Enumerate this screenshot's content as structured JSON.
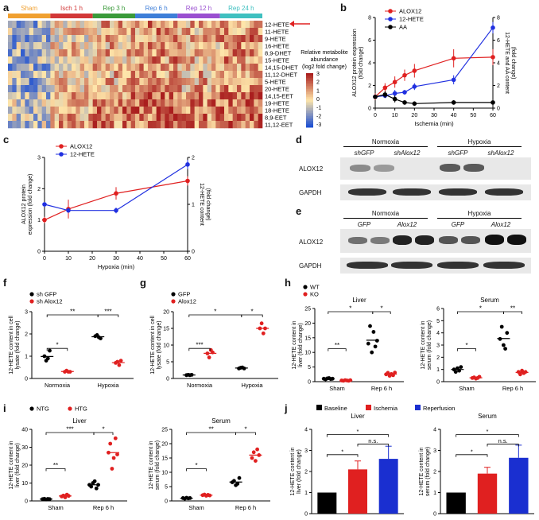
{
  "figure": {
    "panel_letters": [
      "a",
      "b",
      "c",
      "d",
      "e",
      "f",
      "g",
      "h",
      "i",
      "j"
    ],
    "panel_a": {
      "groups": [
        {
          "label": "Sham",
          "color": "#f0a030"
        },
        {
          "label": "Isch 1 h",
          "color": "#d23838"
        },
        {
          "label": "Rep 3 h",
          "color": "#3a9a3a"
        },
        {
          "label": "Rep 6 h",
          "color": "#3d7ed8"
        },
        {
          "label": "Rep 12 h",
          "color": "#9a4fd0"
        },
        {
          "label": "Rep 24 h",
          "color": "#3fc0c0"
        }
      ],
      "rows": [
        "12-HETE",
        "11-HETE",
        "9-HETE",
        "16-HETE",
        "8,9-DHET",
        "15-HETE",
        "14,15-DHET",
        "11,12-DHET",
        "5-HETE",
        "20-HETE",
        "14,15-EET",
        "19-HETE",
        "18-HETE",
        "8,9-EET",
        "11,12-EET"
      ],
      "colorbar_title": [
        "Relative metabolite",
        "abundance",
        "(log2 fold change)"
      ],
      "colorbar_ticks": [
        "3",
        "2",
        "1",
        "0",
        "-1",
        "-2",
        "-3"
      ]
    },
    "panel_b": {
      "ylabel_left": [
        "ALOX12 protein expression",
        "(fold change)"
      ],
      "ylabel_right": [
        "12-HETE and AA content",
        "(fold change)"
      ],
      "xlabel": "Ischemia (min)",
      "legend": [
        "ALOX12",
        "12-HETE",
        "AA"
      ]
    },
    "panel_c": {
      "ylabel_left": [
        "ALOX12 protein",
        "expression (fold change)"
      ],
      "ylabel_right": [
        "12-HETE content",
        "(fold change)"
      ],
      "xlabel": "Hypoxia (min)",
      "legend": [
        "ALOX12",
        "12-HETE"
      ]
    },
    "panel_d": {
      "conditions": [
        "Normoxia",
        "Hypoxia"
      ],
      "lanes": [
        "shGFP",
        "shAlox12",
        "shGFP",
        "shAlox12"
      ],
      "rows": [
        "ALOX12",
        "GAPDH"
      ]
    },
    "panel_e": {
      "conditions": [
        "Normoxia",
        "Hypoxia"
      ],
      "lanes": [
        "GFP",
        "Alox12",
        "GFP",
        "Alox12"
      ],
      "rows": [
        "ALOX12",
        "GAPDH"
      ]
    },
    "panel_f": {
      "legend": [
        "sh GFP",
        "sh Alox12"
      ],
      "ylabel": [
        "12-HETE content in cell",
        "lysate (fold change)"
      ],
      "groups": [
        "Normoxia",
        "Hypoxia"
      ]
    },
    "panel_g": {
      "legend": [
        "GFP",
        "Alox12"
      ],
      "ylabel": [
        "12-HETE content in cell",
        "lysate (fold change)"
      ],
      "groups": [
        "Normoxia",
        "Hypoxia"
      ]
    },
    "panel_h": {
      "legend": [
        "WT",
        "KO"
      ],
      "liver_title": "Liver",
      "serum_title": "Serum",
      "ylabel_liver": [
        "12-HETE content in",
        "liver (fold change)"
      ],
      "ylabel_serum": [
        "12-HETE content in",
        "serum (fold change)"
      ],
      "groups": [
        "Sham",
        "Rep 6 h"
      ]
    },
    "panel_i": {
      "legend": [
        "NTG",
        "HTG"
      ],
      "liver_title": "Liver",
      "serum_title": "Serum",
      "ylabel_liver": [
        "12-HETE content in",
        "liver (fold change)"
      ],
      "ylabel_serum": [
        "12-HETE content in",
        "serum (fold change)"
      ],
      "groups": [
        "Sham",
        "Rep 6 h"
      ]
    },
    "panel_j": {
      "legend": [
        "Baseline",
        "Ischemia",
        "Reperfusion"
      ],
      "liver_title": "Liver",
      "serum_title": "Serum",
      "ylabel_liver": [
        "12-HETE content in",
        "liver (fold change)"
      ],
      "ylabel_serum": [
        "12-HETE content in",
        "serum (fold change)"
      ]
    }
  },
  "chart_data": [
    {
      "panel": "b",
      "type": "line",
      "xlabel": "Ischemia (min)",
      "xlim": [
        0,
        60
      ],
      "x_ticks": [
        0,
        10,
        20,
        30,
        40,
        50,
        60
      ],
      "y_left_lim": [
        0,
        8
      ],
      "y_left_ticks": [
        0,
        2,
        4,
        6,
        8
      ],
      "y_right_lim": [
        0,
        8
      ],
      "y_right_ticks": [
        0,
        2,
        4,
        6,
        8
      ],
      "series": [
        {
          "name": "ALOX12",
          "color": "#e02020",
          "axis": "left",
          "x": [
            0,
            5,
            10,
            15,
            20,
            40,
            60
          ],
          "y": [
            1.0,
            1.8,
            2.3,
            2.9,
            3.3,
            4.4,
            4.5
          ],
          "err": [
            0.3,
            0.4,
            0.5,
            0.5,
            0.6,
            0.8,
            0.7
          ]
        },
        {
          "name": "12-HETE",
          "color": "#2030e0",
          "axis": "right",
          "x": [
            0,
            5,
            10,
            15,
            20,
            40,
            60
          ],
          "y": [
            1.0,
            1.1,
            1.3,
            1.4,
            1.9,
            2.5,
            7.1
          ],
          "err": [
            0.1,
            0.2,
            0.3,
            0.2,
            0.3,
            0.4,
            0.5
          ]
        },
        {
          "name": "AA",
          "color": "#000000",
          "axis": "right",
          "x": [
            0,
            5,
            10,
            15,
            20,
            40,
            60
          ],
          "y": [
            1.0,
            1.2,
            0.8,
            0.5,
            0.4,
            0.5,
            0.5
          ],
          "err": [
            0.2,
            0.3,
            0.3,
            0.2,
            0.2,
            0.2,
            0.2
          ]
        }
      ]
    },
    {
      "panel": "c",
      "type": "line",
      "xlabel": "Hypoxia (min)",
      "xlim": [
        0,
        60
      ],
      "x_ticks": [
        0,
        10,
        20,
        30,
        40,
        50,
        60
      ],
      "y_left_lim": [
        0,
        3
      ],
      "y_left_ticks": [
        0,
        1,
        2,
        3
      ],
      "y_right_lim": [
        0,
        2
      ],
      "y_right_ticks": [
        0,
        1,
        2
      ],
      "series": [
        {
          "name": "ALOX12",
          "color": "#e02020",
          "axis": "left",
          "x": [
            0,
            10,
            30,
            60
          ],
          "y": [
            1.0,
            1.35,
            1.85,
            2.25
          ],
          "err": [
            0.1,
            0.3,
            0.2,
            0.15
          ]
        },
        {
          "name": "12-HETE",
          "color": "#2030e0",
          "axis": "right",
          "x": [
            0,
            10,
            30,
            60
          ],
          "y": [
            1.0,
            0.87,
            0.87,
            1.85
          ],
          "err": [
            0.05,
            0.05,
            0.06,
            0.1
          ]
        }
      ]
    },
    {
      "panel": "f",
      "type": "scatter",
      "ylim": [
        0,
        3
      ],
      "y_ticks": [
        0,
        1,
        2,
        3
      ],
      "groups": [
        "Normoxia",
        "Hypoxia"
      ],
      "series": [
        {
          "name": "sh GFP",
          "color": "#000000",
          "values": [
            [
              1.0,
              0.8,
              0.9,
              1.25
            ],
            [
              1.9,
              1.95,
              1.85,
              1.8
            ]
          ]
        },
        {
          "name": "sh Alox12",
          "color": "#e02020",
          "values": [
            [
              0.3,
              0.35,
              0.3,
              0.3
            ],
            [
              0.7,
              0.75,
              0.6,
              0.8
            ]
          ]
        }
      ],
      "significance": [
        "*",
        "**",
        "***"
      ]
    },
    {
      "panel": "g",
      "type": "scatter",
      "ylim": [
        0,
        20
      ],
      "y_ticks": [
        0,
        5,
        10,
        15,
        20
      ],
      "groups": [
        "Normoxia",
        "Hypoxia"
      ],
      "series": [
        {
          "name": "GFP",
          "color": "#000000",
          "values": [
            [
              1.0,
              1.1,
              1.0,
              1.1
            ],
            [
              3.0,
              3.2,
              3.3,
              3.0
            ]
          ]
        },
        {
          "name": "Alox12",
          "color": "#e02020",
          "values": [
            [
              7.5,
              6.3,
              8.5,
              7.8
            ],
            [
              15,
              16.5,
              13.5,
              15
            ]
          ]
        }
      ],
      "significance": [
        "***",
        "*",
        "*"
      ]
    },
    {
      "panel": "h-liver",
      "type": "scatter",
      "ylim": [
        0,
        25
      ],
      "y_ticks": [
        0,
        5,
        10,
        15,
        20,
        25
      ],
      "groups": [
        "Sham",
        "Rep 6 h"
      ],
      "series": [
        {
          "name": "WT",
          "color": "#000000",
          "values": [
            [
              1.0,
              0.8,
              1.1,
              1.2,
              0.9,
              1.0
            ],
            [
              13,
              19,
              10,
              17,
              12,
              14
            ]
          ]
        },
        {
          "name": "KO",
          "color": "#e02020",
          "values": [
            [
              0.4,
              0.3,
              0.5,
              0.4,
              0.3,
              0.5
            ],
            [
              2.5,
              3,
              2,
              2.6,
              2.2,
              3.1
            ]
          ]
        }
      ],
      "significance": [
        "**",
        "*",
        "*"
      ]
    },
    {
      "panel": "h-serum",
      "type": "scatter",
      "ylim": [
        0,
        6
      ],
      "y_ticks": [
        0,
        1,
        2,
        3,
        4,
        5,
        6
      ],
      "groups": [
        "Sham",
        "Rep 6 h"
      ],
      "series": [
        {
          "name": "WT",
          "color": "#000000",
          "values": [
            [
              1.0,
              0.8,
              1.1,
              0.9,
              1.2
            ],
            [
              3.5,
              4.5,
              3.0,
              2.7,
              4.0
            ]
          ]
        },
        {
          "name": "KO",
          "color": "#e02020",
          "values": [
            [
              0.3,
              0.35,
              0.25,
              0.3,
              0.4
            ],
            [
              0.8,
              0.6,
              0.9,
              0.7,
              0.8
            ]
          ]
        }
      ],
      "significance": [
        "*",
        "*",
        "**"
      ]
    },
    {
      "panel": "i-liver",
      "type": "scatter",
      "ylim": [
        0,
        40
      ],
      "y_ticks": [
        0,
        10,
        20,
        30,
        40
      ],
      "groups": [
        "Sham",
        "Rep 6 h"
      ],
      "series": [
        {
          "name": "NTG",
          "color": "#000000",
          "values": [
            [
              1.0,
              1.2,
              0.8,
              1.1,
              1.0
            ],
            [
              9,
              8,
              10,
              11,
              7,
              9
            ]
          ]
        },
        {
          "name": "HTG",
          "color": "#e02020",
          "values": [
            [
              2.5,
              3,
              2,
              3.5,
              2.8
            ],
            [
              27,
              32,
              18,
              24,
              35,
              26
            ]
          ]
        }
      ],
      "significance": [
        "**",
        "***",
        "*"
      ]
    },
    {
      "panel": "i-serum",
      "type": "scatter",
      "ylim": [
        0,
        25
      ],
      "y_ticks": [
        0,
        5,
        10,
        15,
        20,
        25
      ],
      "groups": [
        "Sham",
        "Rep 6 h"
      ],
      "series": [
        {
          "name": "NTG",
          "color": "#000000",
          "values": [
            [
              1.0,
              0.8,
              1.1,
              0.9,
              1.0
            ],
            [
              6.5,
              7,
              5.5,
              6,
              8
            ]
          ]
        },
        {
          "name": "HTG",
          "color": "#e02020",
          "values": [
            [
              2.0,
              2.2,
              1.8,
              2.1,
              1.9
            ],
            [
              15,
              17,
              14,
              18,
              16
            ]
          ]
        }
      ],
      "significance": [
        "*",
        "**",
        "*"
      ]
    },
    {
      "panel": "j-liver",
      "type": "bar",
      "ylim": [
        0,
        4
      ],
      "y_ticks": [
        0,
        1,
        2,
        3,
        4
      ],
      "categories": [
        "Baseline",
        "Ischemia",
        "Reperfusion"
      ],
      "colors": [
        "#000000",
        "#e02020",
        "#1a2fd0"
      ],
      "values": [
        1.0,
        2.1,
        2.6
      ],
      "err": [
        0,
        0.4,
        0.6
      ],
      "significance": [
        "*",
        "*",
        "n.s."
      ]
    },
    {
      "panel": "j-serum",
      "type": "bar",
      "ylim": [
        0,
        4
      ],
      "y_ticks": [
        0,
        1,
        2,
        3,
        4
      ],
      "categories": [
        "Baseline",
        "Ischemia",
        "Reperfusion"
      ],
      "colors": [
        "#000000",
        "#e02020",
        "#1a2fd0"
      ],
      "values": [
        1.0,
        1.9,
        2.65
      ],
      "err": [
        0,
        0.3,
        0.6
      ],
      "significance": [
        "*",
        "*",
        "n.s."
      ]
    }
  ]
}
